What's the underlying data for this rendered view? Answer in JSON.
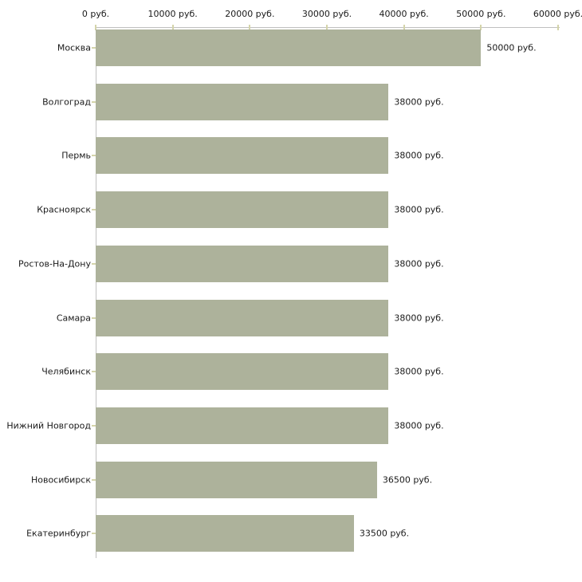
{
  "chart_data": {
    "type": "bar",
    "orientation": "horizontal",
    "title": "",
    "xlabel": "",
    "ylabel": "",
    "unit": "руб.",
    "grid": "off",
    "legend": "none",
    "categories": [
      "Москва",
      "Волгоград",
      "Пермь",
      "Красноярск",
      "Ростов-На-Дону",
      "Самара",
      "Челябинск",
      "Нижний Новгород",
      "Новосибирск",
      "Екатеринбург"
    ],
    "values": [
      50000,
      38000,
      38000,
      38000,
      38000,
      38000,
      38000,
      38000,
      36500,
      33500
    ],
    "value_labels": [
      "50000 руб.",
      "38000 руб.",
      "38000 руб.",
      "38000 руб.",
      "38000 руб.",
      "38000 руб.",
      "38000 руб.",
      "38000 руб.",
      "36500 руб.",
      "33500 руб."
    ],
    "x_axis": {
      "position": "top",
      "min": 0,
      "max": 60000,
      "tick_values": [
        0,
        10000,
        20000,
        30000,
        40000,
        50000,
        60000
      ],
      "tick_labels": [
        "0 руб.",
        "10000 руб.",
        "20000 руб.",
        "30000 руб.",
        "40000 руб.",
        "50000 руб.",
        "60000 руб."
      ]
    },
    "colors": {
      "bar": "#adb29b",
      "axis": "#c0c0c0",
      "tick": "#d4d4aa",
      "text": "#1a1a1a",
      "background": "#ffffff"
    }
  }
}
